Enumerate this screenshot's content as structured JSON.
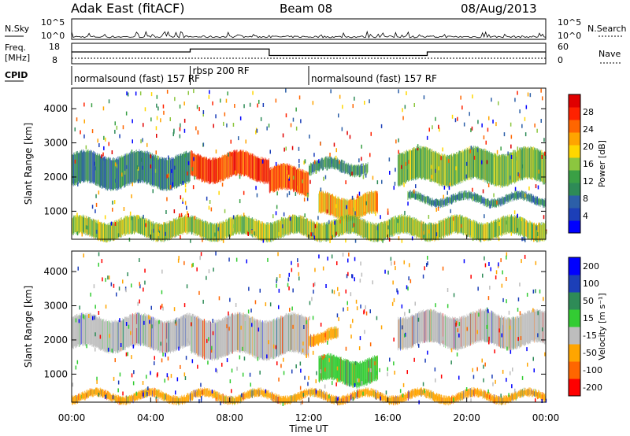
{
  "header": {
    "station": "Adak East (fitACF)",
    "beam": "Beam 08",
    "date": "08/Aug/2013"
  },
  "top_panels": {
    "nsky_label": "N.Sky",
    "nsearch_label": "N.Search",
    "noise_tick_high": "10^5",
    "noise_tick_low": "10^0",
    "freq_label_line1": "Freq.",
    "freq_label_line2": "[MHz]",
    "freq_ticks": [
      "18",
      "8"
    ],
    "nave_label": "Nave",
    "nave_ticks": [
      "60",
      "0"
    ],
    "cpid_label": "CPID",
    "cpid_segments": [
      {
        "name": "normalsound (fast) 157 RF",
        "start_hour": 0,
        "end_hour": 6
      },
      {
        "name": "rbsp 200 RF",
        "start_hour": 6,
        "end_hour": 12
      },
      {
        "name": "normalsound (fast) 157 RF",
        "start_hour": 12,
        "end_hour": 24
      }
    ],
    "freq_steps": [
      {
        "start_hour": 0,
        "end_hour": 6,
        "value": 1.0
      },
      {
        "start_hour": 6,
        "end_hour": 10,
        "value": 1.25
      },
      {
        "start_hour": 10,
        "end_hour": 18,
        "value": 0.7
      },
      {
        "start_hour": 18,
        "end_hour": 24,
        "value": 1.0
      }
    ]
  },
  "chart_data": [
    {
      "type": "heatmap",
      "title": "Power",
      "ylabel": "Slant Range [km]",
      "xlabel": "Time UT",
      "x_ticks": [
        "00:00",
        "04:00",
        "08:00",
        "12:00",
        "16:00",
        "20:00",
        "00:00"
      ],
      "x_range_hours": [
        0,
        24
      ],
      "y_ticks": [
        "1000",
        "2000",
        "3000",
        "4000"
      ],
      "ylim": [
        180,
        4600
      ],
      "colorbar_label": "Power [dB]",
      "colorbar_ticks": [
        "4",
        "8",
        "12",
        "16",
        "20",
        "24",
        "28"
      ],
      "colorbar_range": [
        0,
        30
      ],
      "colors": [
        "#0000ff",
        "#1c3fb8",
        "#2c5fa8",
        "#2e8b57",
        "#3aa045",
        "#8cc63f",
        "#ffd700",
        "#ffa500",
        "#ff6600",
        "#ff2200",
        "#e00000"
      ],
      "echo_bands": [
        {
          "start_hour": 0.0,
          "end_hour": 6.0,
          "range_start": 1700,
          "range_end": 2700,
          "level": 0.3
        },
        {
          "start_hour": 6.0,
          "end_hour": 10.0,
          "range_start": 1900,
          "range_end": 2700,
          "level": 0.85
        },
        {
          "start_hour": 10.0,
          "end_hour": 12.0,
          "range_start": 1500,
          "range_end": 2300,
          "level": 0.8
        },
        {
          "start_hour": 12.0,
          "end_hour": 15.0,
          "range_start": 2100,
          "range_end": 2500,
          "level": 0.35
        },
        {
          "start_hour": 12.5,
          "end_hour": 15.5,
          "range_start": 800,
          "range_end": 1500,
          "level": 0.65
        },
        {
          "start_hour": 16.5,
          "end_hour": 24.0,
          "range_start": 1800,
          "range_end": 2800,
          "level": 0.45
        },
        {
          "start_hour": 17.0,
          "end_hour": 24.0,
          "range_start": 1200,
          "range_end": 1500,
          "level": 0.3
        },
        {
          "start_hour": 0.0,
          "end_hour": 24.0,
          "range_start": 200,
          "range_end": 800,
          "level": 0.5
        }
      ]
    },
    {
      "type": "heatmap",
      "title": "Velocity",
      "ylabel": "Slant Range [km]",
      "xlabel": "Time UT",
      "x_ticks": [
        "00:00",
        "04:00",
        "08:00",
        "12:00",
        "16:00",
        "20:00",
        "00:00"
      ],
      "x_range_hours": [
        0,
        24
      ],
      "y_ticks": [
        "1000",
        "2000",
        "3000",
        "4000"
      ],
      "ylim": [
        180,
        4600
      ],
      "colorbar_label": "Velocity [m s⁻¹]",
      "colorbar_ticks": [
        "200",
        "100",
        "50",
        "15",
        "-15",
        "-50",
        "-100",
        "-200"
      ],
      "colors": [
        "#0000ff",
        "#1c3fb8",
        "#2e8b57",
        "#33cc33",
        "#bdbdbd",
        "#ffa500",
        "#ff6600",
        "#ff0000"
      ],
      "echo_bands": [
        {
          "start_hour": 0.0,
          "end_hour": 6.0,
          "range_start": 1700,
          "range_end": 2700,
          "color_index": 4
        },
        {
          "start_hour": 6.0,
          "end_hour": 12.0,
          "range_start": 1500,
          "range_end": 2700,
          "color_index": 4
        },
        {
          "start_hour": 12.0,
          "end_hour": 13.5,
          "range_start": 1900,
          "range_end": 2300,
          "color_index": 5
        },
        {
          "start_hour": 12.5,
          "end_hour": 15.5,
          "range_start": 700,
          "range_end": 1500,
          "color_index": 3
        },
        {
          "start_hour": 16.5,
          "end_hour": 24.0,
          "range_start": 1800,
          "range_end": 2800,
          "color_index": 4
        },
        {
          "start_hour": 0.0,
          "end_hour": 24.0,
          "range_start": 200,
          "range_end": 500,
          "color_index": 5
        }
      ]
    }
  ]
}
